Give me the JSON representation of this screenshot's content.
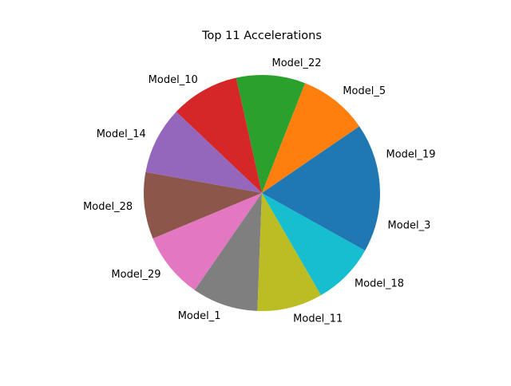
{
  "chart_data": {
    "type": "pie",
    "title": "Top 11 Accelerations",
    "categories": [
      "Model_19",
      "Model_5",
      "Model_22",
      "Model_10",
      "Model_14",
      "Model_28",
      "Model_29",
      "Model_1",
      "Model_11",
      "Model_18",
      "Model_3"
    ],
    "values": [
      24.8,
      24.6,
      24.5,
      24.4,
      24.0,
      23.7,
      23.5,
      23.4,
      23.2,
      22.2,
      21.0
    ],
    "start_angle_deg": 0,
    "direction": "counterclockwise",
    "colors": [
      "#1f77b4",
      "#ff7f0e",
      "#2ca02c",
      "#d62728",
      "#9467bd",
      "#8c564b",
      "#e377c2",
      "#7f7f7f",
      "#bcbd22",
      "#17becf",
      "#1f77b4"
    ],
    "legend": "none",
    "grid": false
  }
}
